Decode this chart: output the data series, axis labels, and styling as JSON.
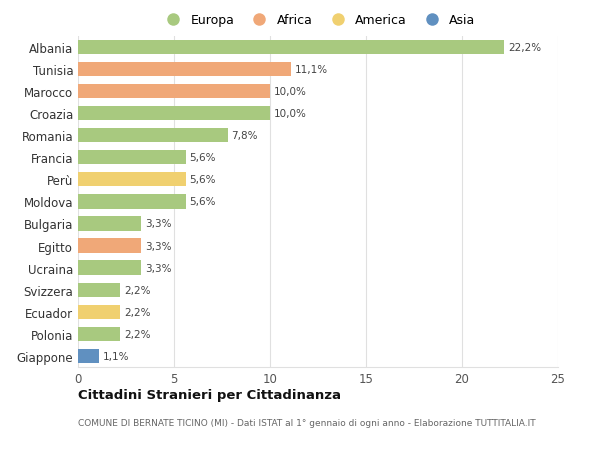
{
  "countries": [
    "Albania",
    "Tunisia",
    "Marocco",
    "Croazia",
    "Romania",
    "Francia",
    "Perù",
    "Moldova",
    "Bulgaria",
    "Egitto",
    "Ucraina",
    "Svizzera",
    "Ecuador",
    "Polonia",
    "Giappone"
  ],
  "values": [
    22.2,
    11.1,
    10.0,
    10.0,
    7.8,
    5.6,
    5.6,
    5.6,
    3.3,
    3.3,
    3.3,
    2.2,
    2.2,
    2.2,
    1.1
  ],
  "labels": [
    "22,2%",
    "11,1%",
    "10,0%",
    "10,0%",
    "7,8%",
    "5,6%",
    "5,6%",
    "5,6%",
    "3,3%",
    "3,3%",
    "3,3%",
    "2,2%",
    "2,2%",
    "2,2%",
    "1,1%"
  ],
  "continents": [
    "Europa",
    "Africa",
    "Africa",
    "Europa",
    "Europa",
    "Europa",
    "America",
    "Europa",
    "Europa",
    "Africa",
    "Europa",
    "Europa",
    "America",
    "Europa",
    "Asia"
  ],
  "continent_colors": {
    "Europa": "#a8c97f",
    "Africa": "#f0a878",
    "America": "#f0d070",
    "Asia": "#6090c0"
  },
  "legend_order": [
    "Europa",
    "Africa",
    "America",
    "Asia"
  ],
  "legend_colors": [
    "#a8c97f",
    "#f0a878",
    "#f0d070",
    "#6090c0"
  ],
  "title": "Cittadini Stranieri per Cittadinanza",
  "subtitle": "COMUNE DI BERNATE TICINO (MI) - Dati ISTAT al 1° gennaio di ogni anno - Elaborazione TUTTITALIA.IT",
  "xlim": [
    0,
    25
  ],
  "xticks": [
    0,
    5,
    10,
    15,
    20,
    25
  ],
  "background_color": "#ffffff",
  "grid_color": "#e0e0e0"
}
